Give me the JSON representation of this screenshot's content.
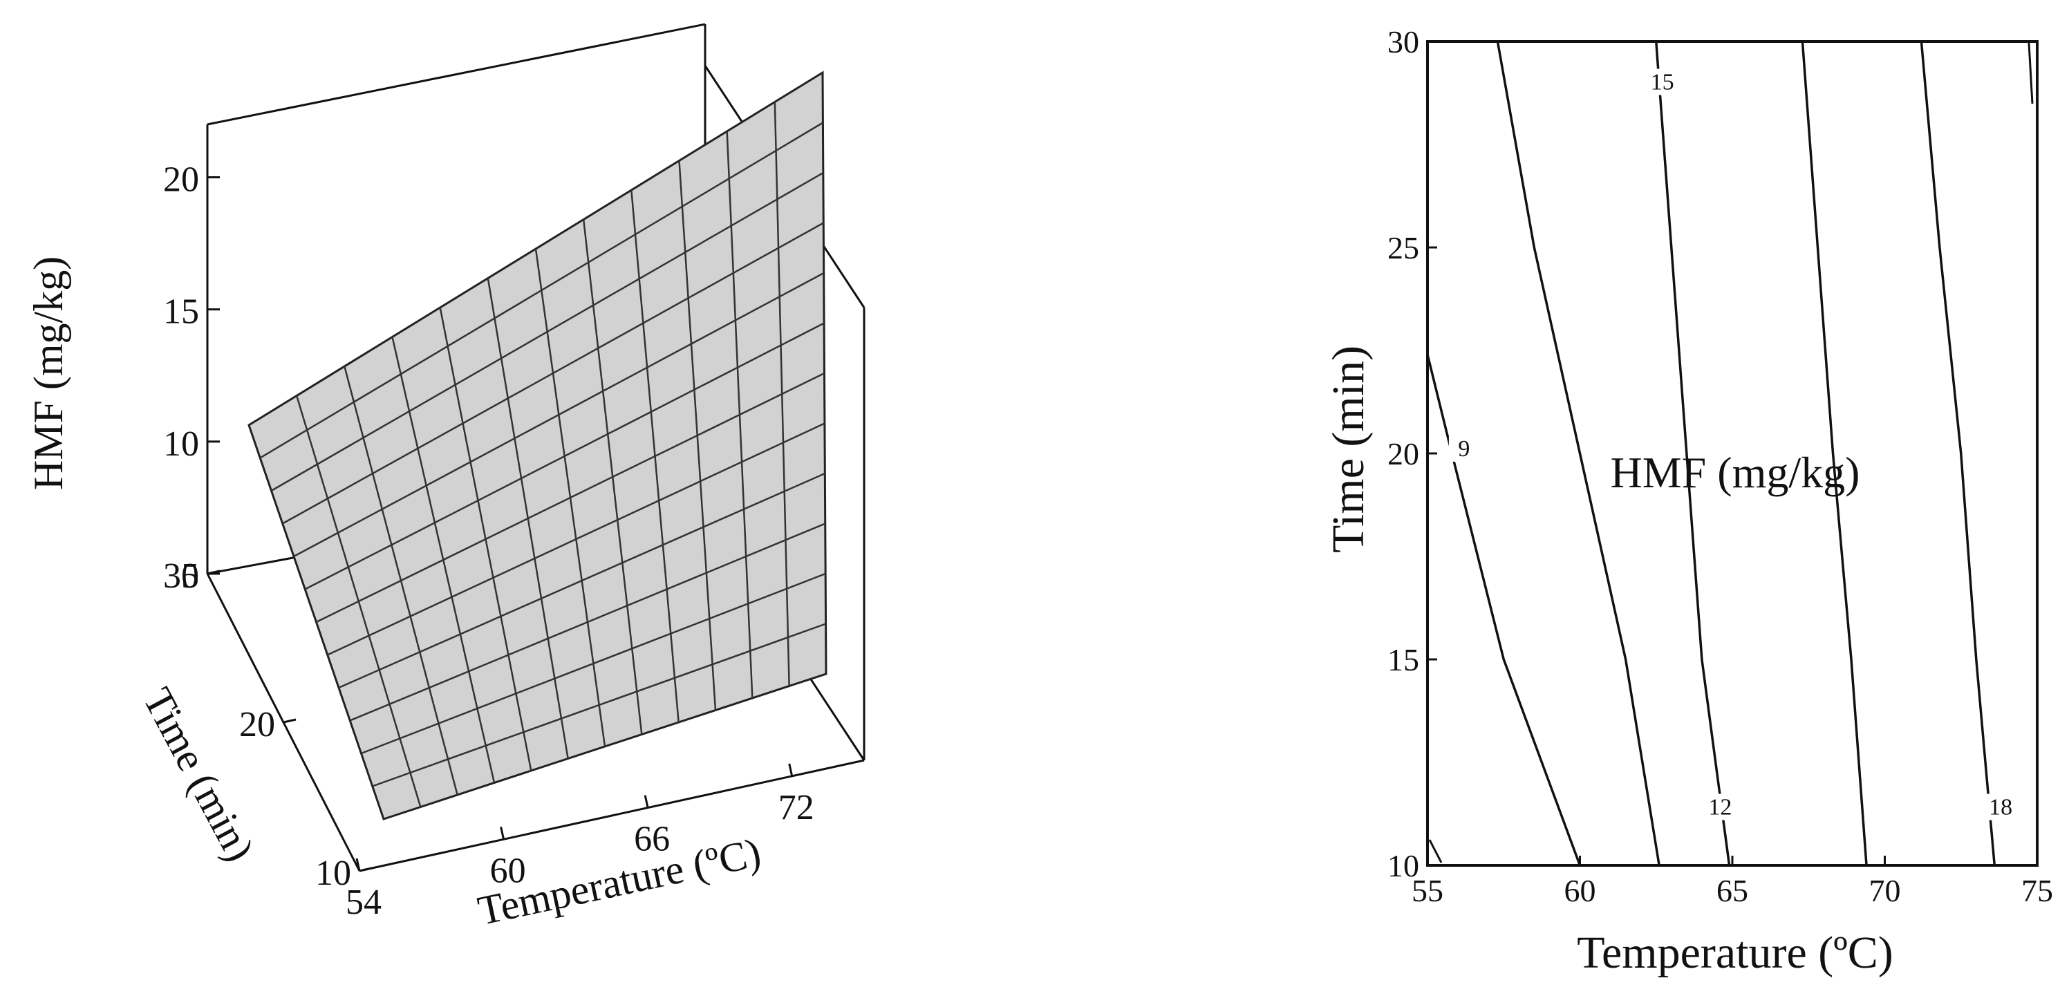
{
  "chart_data": [
    {
      "type": "surface",
      "title": "",
      "xlabel": "Temperature (ºC)",
      "ylabel": "Time (min)",
      "zlabel": "HMF (mg/kg)",
      "x_ticks": [
        "54",
        "60",
        "66",
        "72"
      ],
      "y_ticks": [
        "10",
        "20",
        "30"
      ],
      "z_ticks": [
        "5",
        "10",
        "15",
        "20"
      ],
      "xlim": [
        54,
        75
      ],
      "ylim": [
        10,
        30
      ],
      "zlim": [
        5,
        22
      ],
      "grid_lines": 12,
      "corners": [
        {
          "temperature": 54,
          "time": 10,
          "hmf": 7.5
        },
        {
          "temperature": 75,
          "time": 10,
          "hmf": 19.5
        },
        {
          "temperature": 75,
          "time": 30,
          "hmf": 21.5
        },
        {
          "temperature": 54,
          "time": 30,
          "hmf": 8.5
        }
      ]
    },
    {
      "type": "contour",
      "title": "HMF (mg/kg)",
      "xlabel": "Temperature (ºC)",
      "ylabel": "Time (min)",
      "x_ticks": [
        "55",
        "60",
        "65",
        "70",
        "75"
      ],
      "y_ticks": [
        "10",
        "15",
        "20",
        "25",
        "30"
      ],
      "xlim": [
        55,
        75
      ],
      "ylim": [
        10,
        30
      ],
      "series": [
        {
          "name": "",
          "points": [
            [
              55,
              22.4
            ],
            [
              55.8,
              20
            ],
            [
              57.5,
              15
            ],
            [
              59.0,
              12
            ],
            [
              60.0,
              10
            ]
          ]
        },
        {
          "name": "9",
          "points": [
            [
              57.3,
              30
            ],
            [
              58.5,
              25
            ],
            [
              60.0,
              20
            ],
            [
              61.5,
              15
            ],
            [
              62.6,
              10
            ]
          ]
        },
        {
          "name": "12",
          "points": [
            [
              62.5,
              30
            ],
            [
              63.0,
              25
            ],
            [
              63.5,
              20
            ],
            [
              64.0,
              15
            ],
            [
              64.9,
              10
            ]
          ]
        },
        {
          "name": "15",
          "points": [
            [
              67.3,
              30
            ],
            [
              67.8,
              25
            ],
            [
              68.3,
              20
            ],
            [
              68.9,
              15
            ],
            [
              69.4,
              10
            ]
          ]
        },
        {
          "name": "18",
          "points": [
            [
              71.2,
              30
            ],
            [
              71.8,
              25
            ],
            [
              72.5,
              20
            ],
            [
              73.0,
              15
            ],
            [
              73.6,
              10
            ]
          ]
        }
      ],
      "contour_labels": [
        {
          "text": "9",
          "temperature": 56.2,
          "time": 20.0
        },
        {
          "text": "15",
          "temperature": 62.7,
          "time": 28.9
        },
        {
          "text": "12",
          "temperature": 64.6,
          "time": 11.3
        },
        {
          "text": "18",
          "temperature": 73.8,
          "time": 11.3
        }
      ]
    }
  ]
}
